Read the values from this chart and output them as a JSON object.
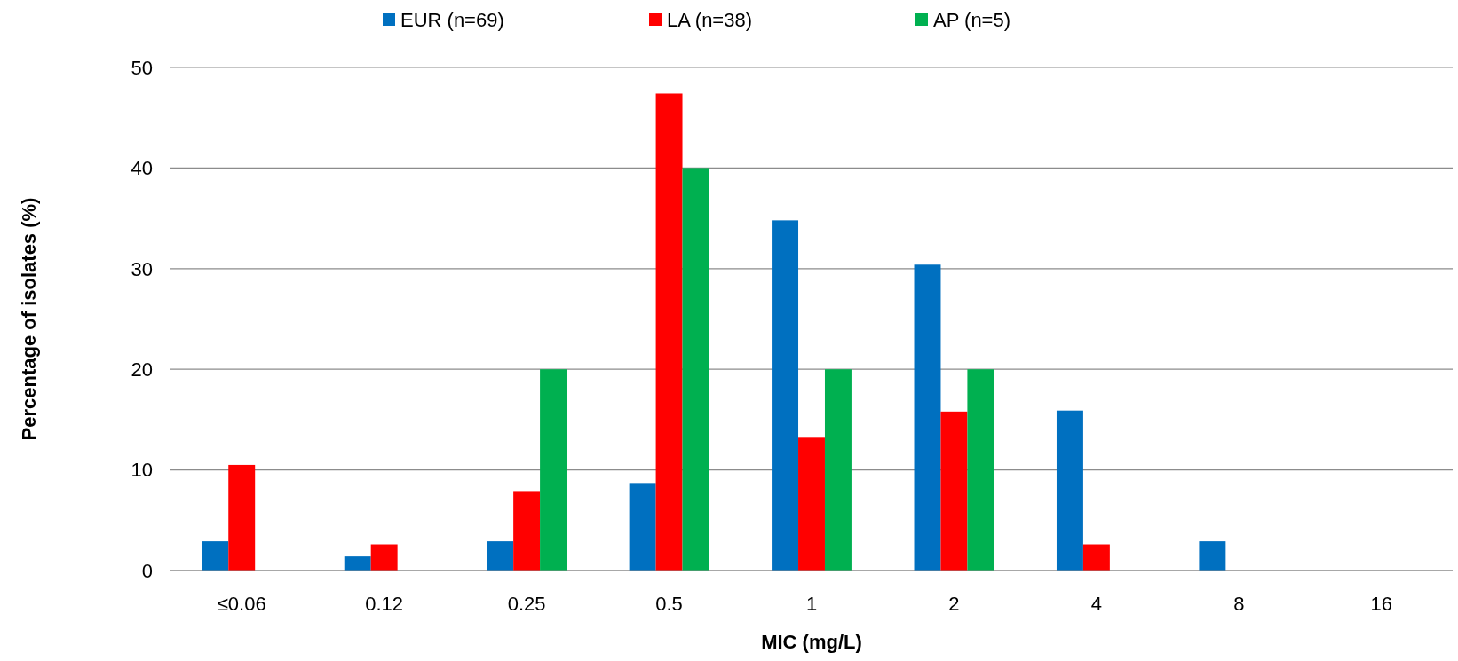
{
  "chart_data": {
    "type": "bar",
    "xlabel": "MIC (mg/L)",
    "ylabel": "Percentage of isolates (%)",
    "categories": [
      "≤0.06",
      "0.12",
      "0.25",
      "0.5",
      "1",
      "2",
      "4",
      "8",
      "16"
    ],
    "series": [
      {
        "name": "EUR (n=69)",
        "color": "#0070c0",
        "values": [
          2.9,
          1.4,
          2.9,
          8.7,
          34.8,
          30.4,
          15.9,
          2.9,
          0
        ]
      },
      {
        "name": "LA (n=38)",
        "color": "#ff0000",
        "values": [
          10.5,
          2.6,
          7.9,
          47.4,
          13.2,
          15.8,
          2.6,
          0,
          0
        ]
      },
      {
        "name": "AP (n=5)",
        "color": "#00b050",
        "values": [
          0,
          0,
          20,
          40,
          20,
          20,
          0,
          0,
          0
        ]
      }
    ],
    "ylim": [
      0,
      50
    ],
    "yticks": [
      0,
      10,
      20,
      30,
      40,
      50
    ],
    "grid": "y",
    "legend": "top"
  }
}
